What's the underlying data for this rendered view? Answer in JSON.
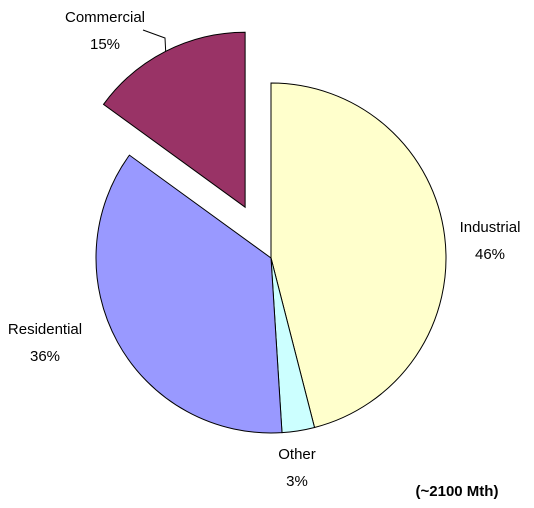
{
  "chart_data": {
    "type": "pie",
    "categories": [
      "Industrial",
      "Other",
      "Residential",
      "Commercial"
    ],
    "values": [
      46,
      3,
      36,
      15
    ],
    "value_labels": [
      "46%",
      "3%",
      "36%",
      "15%"
    ],
    "colors": [
      "#ffffcc",
      "#ccffff",
      "#9999ff",
      "#993366"
    ],
    "exploded": [
      false,
      false,
      false,
      true
    ],
    "annotation": "(~2100 Mth)"
  }
}
